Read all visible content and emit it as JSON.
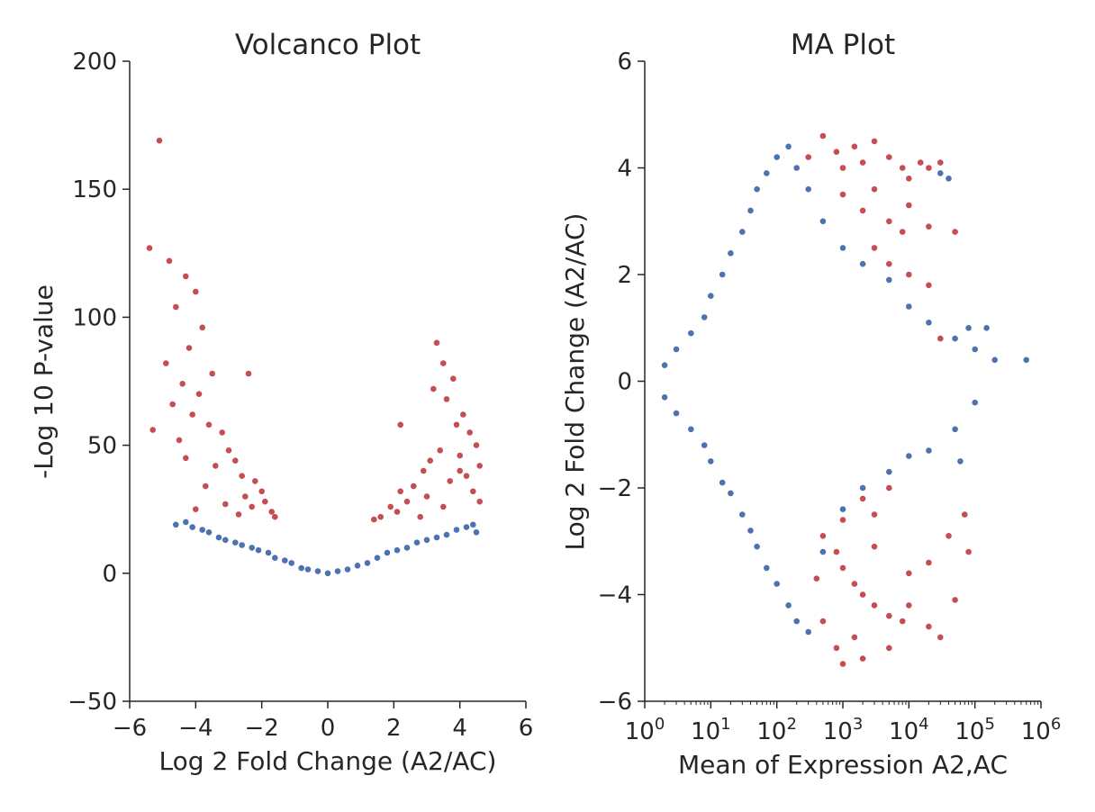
{
  "chart_data": [
    {
      "type": "scatter",
      "title": "Volcanco Plot",
      "xlabel": "Log 2 Fold Change (A2/AC)",
      "ylabel": "-Log 10 P-value",
      "xlim": [
        -6,
        6
      ],
      "ylim": [
        -50,
        200
      ],
      "xticks": [
        -6,
        -4,
        -2,
        0,
        2,
        4,
        6
      ],
      "xtick_labels": [
        "−6",
        "−4",
        "−2",
        "0",
        "2",
        "4",
        "6"
      ],
      "yticks": [
        -50,
        0,
        50,
        100,
        150,
        200
      ],
      "ytick_labels": [
        "−50",
        "0",
        "50",
        "100",
        "150",
        "200"
      ],
      "grid": false,
      "legend": "none",
      "series": [
        {
          "color": "#4c72b0",
          "points": [
            [
              -4.6,
              19
            ],
            [
              -4.3,
              20
            ],
            [
              -4.1,
              18
            ],
            [
              -3.8,
              17
            ],
            [
              -3.6,
              16
            ],
            [
              -3.3,
              14
            ],
            [
              -3.1,
              13
            ],
            [
              -2.8,
              12
            ],
            [
              -2.6,
              11
            ],
            [
              -2.3,
              10
            ],
            [
              -2.1,
              9
            ],
            [
              -1.8,
              8
            ],
            [
              -1.6,
              6
            ],
            [
              -1.3,
              5
            ],
            [
              -1.1,
              4
            ],
            [
              -0.8,
              2
            ],
            [
              -0.6,
              1.5
            ],
            [
              -0.3,
              0.8
            ],
            [
              0,
              0
            ],
            [
              0.3,
              0.8
            ],
            [
              0.6,
              1.5
            ],
            [
              0.9,
              3
            ],
            [
              1.2,
              4
            ],
            [
              1.5,
              6
            ],
            [
              1.8,
              8
            ],
            [
              2.1,
              9
            ],
            [
              2.4,
              10
            ],
            [
              2.7,
              12
            ],
            [
              3.0,
              13
            ],
            [
              3.3,
              14
            ],
            [
              3.6,
              15
            ],
            [
              3.9,
              17
            ],
            [
              4.2,
              18
            ],
            [
              4.4,
              19
            ],
            [
              4.5,
              16
            ]
          ]
        },
        {
          "color": "#c44e52",
          "points": [
            [
              -5.1,
              169
            ],
            [
              -5.4,
              127
            ],
            [
              -4.8,
              122
            ],
            [
              -4.3,
              116
            ],
            [
              -4.0,
              110
            ],
            [
              -4.6,
              104
            ],
            [
              -3.8,
              96
            ],
            [
              -4.2,
              88
            ],
            [
              -4.9,
              82
            ],
            [
              -3.5,
              78
            ],
            [
              -4.4,
              74
            ],
            [
              -3.9,
              70
            ],
            [
              -2.4,
              78
            ],
            [
              -4.7,
              66
            ],
            [
              -4.1,
              62
            ],
            [
              -3.6,
              58
            ],
            [
              -3.2,
              55
            ],
            [
              -4.5,
              52
            ],
            [
              -5.3,
              56
            ],
            [
              -3.0,
              48
            ],
            [
              -2.8,
              44
            ],
            [
              -4.3,
              45
            ],
            [
              -3.4,
              42
            ],
            [
              -2.6,
              38
            ],
            [
              -2.2,
              36
            ],
            [
              -3.7,
              34
            ],
            [
              -2.0,
              32
            ],
            [
              -2.5,
              30
            ],
            [
              -1.9,
              28
            ],
            [
              -3.1,
              27
            ],
            [
              -2.3,
              26
            ],
            [
              -1.7,
              24
            ],
            [
              -4.0,
              25
            ],
            [
              -2.7,
              23
            ],
            [
              -1.6,
              22
            ],
            [
              3.3,
              90
            ],
            [
              3.5,
              82
            ],
            [
              3.2,
              72
            ],
            [
              3.8,
              76
            ],
            [
              3.6,
              68
            ],
            [
              4.1,
              62
            ],
            [
              3.9,
              58
            ],
            [
              4.3,
              55
            ],
            [
              4.5,
              50
            ],
            [
              3.4,
              48
            ],
            [
              4.0,
              46
            ],
            [
              4.6,
              42
            ],
            [
              3.1,
              44
            ],
            [
              2.9,
              40
            ],
            [
              4.2,
              38
            ],
            [
              3.7,
              36
            ],
            [
              2.6,
              34
            ],
            [
              4.4,
              32
            ],
            [
              2.2,
              32
            ],
            [
              3.0,
              30
            ],
            [
              2.4,
              28
            ],
            [
              1.9,
              26
            ],
            [
              3.5,
              26
            ],
            [
              2.1,
              24
            ],
            [
              4.6,
              28
            ],
            [
              1.6,
              22
            ],
            [
              2.8,
              22
            ],
            [
              1.4,
              21
            ],
            [
              2.2,
              58
            ],
            [
              4.0,
              40
            ]
          ]
        }
      ]
    },
    {
      "type": "scatter",
      "title": "MA Plot",
      "xlabel": "Mean of Expression A2,AC",
      "ylabel": "Log 2 Fold Change (A2/AC)",
      "xscale": "log",
      "xlim": [
        1,
        1000000
      ],
      "ylim": [
        -6,
        6
      ],
      "xtick_labels": [
        {
          "base": "10",
          "exp": "0"
        },
        {
          "base": "10",
          "exp": "1"
        },
        {
          "base": "10",
          "exp": "2"
        },
        {
          "base": "10",
          "exp": "3"
        },
        {
          "base": "10",
          "exp": "4"
        },
        {
          "base": "10",
          "exp": "5"
        },
        {
          "base": "10",
          "exp": "6"
        }
      ],
      "yticks": [
        -6,
        -4,
        -2,
        0,
        2,
        4,
        6
      ],
      "ytick_labels": [
        "−6",
        "−4",
        "−2",
        "0",
        "2",
        "4",
        "6"
      ],
      "grid": false,
      "legend": "none",
      "series": [
        {
          "color": "#4c72b0",
          "points": [
            [
              2,
              0.3
            ],
            [
              2,
              -0.3
            ],
            [
              3,
              0.6
            ],
            [
              3,
              -0.6
            ],
            [
              5,
              0.9
            ],
            [
              5,
              -0.9
            ],
            [
              8,
              1.2
            ],
            [
              8,
              -1.2
            ],
            [
              10,
              1.6
            ],
            [
              10,
              -1.5
            ],
            [
              15,
              2.0
            ],
            [
              15,
              -1.9
            ],
            [
              20,
              2.4
            ],
            [
              20,
              -2.1
            ],
            [
              30,
              2.8
            ],
            [
              30,
              -2.5
            ],
            [
              40,
              3.2
            ],
            [
              40,
              -2.8
            ],
            [
              50,
              3.6
            ],
            [
              50,
              -3.1
            ],
            [
              70,
              3.9
            ],
            [
              70,
              -3.5
            ],
            [
              100,
              4.2
            ],
            [
              100,
              -3.8
            ],
            [
              150,
              4.4
            ],
            [
              150,
              -4.2
            ],
            [
              200,
              4.0
            ],
            [
              200,
              -4.5
            ],
            [
              300,
              3.6
            ],
            [
              300,
              -4.7
            ],
            [
              500,
              3.0
            ],
            [
              500,
              -3.2
            ],
            [
              1000,
              2.5
            ],
            [
              1000,
              -2.4
            ],
            [
              2000,
              2.2
            ],
            [
              2000,
              -2.0
            ],
            [
              5000,
              1.9
            ],
            [
              5000,
              -1.7
            ],
            [
              10000,
              1.4
            ],
            [
              10000,
              -1.4
            ],
            [
              20000,
              1.1
            ],
            [
              20000,
              -1.3
            ],
            [
              50000,
              0.8
            ],
            [
              50000,
              -0.9
            ],
            [
              80000,
              1.0
            ],
            [
              100000,
              0.6
            ],
            [
              100000,
              -0.4
            ],
            [
              150000,
              1.0
            ],
            [
              200000,
              0.4
            ],
            [
              600000,
              0.4
            ],
            [
              30000,
              3.9
            ],
            [
              40000,
              3.8
            ],
            [
              60000,
              -1.5
            ]
          ]
        },
        {
          "color": "#c44e52",
          "points": [
            [
              300,
              4.2
            ],
            [
              500,
              4.6
            ],
            [
              800,
              4.3
            ],
            [
              1000,
              4.0
            ],
            [
              1500,
              4.4
            ],
            [
              2000,
              4.1
            ],
            [
              3000,
              4.5
            ],
            [
              5000,
              4.2
            ],
            [
              8000,
              4.0
            ],
            [
              10000,
              3.8
            ],
            [
              15000,
              4.1
            ],
            [
              20000,
              4.0
            ],
            [
              30000,
              4.1
            ],
            [
              1000,
              3.5
            ],
            [
              2000,
              3.2
            ],
            [
              3000,
              3.6
            ],
            [
              5000,
              3.0
            ],
            [
              8000,
              2.8
            ],
            [
              10000,
              3.3
            ],
            [
              20000,
              2.9
            ],
            [
              50000,
              2.8
            ],
            [
              3000,
              2.5
            ],
            [
              5000,
              2.2
            ],
            [
              10000,
              2.0
            ],
            [
              20000,
              1.8
            ],
            [
              30000,
              0.8
            ],
            [
              2000,
              -2.2
            ],
            [
              3000,
              -2.5
            ],
            [
              5000,
              -2.0
            ],
            [
              1000,
              -2.6
            ],
            [
              500,
              -2.9
            ],
            [
              800,
              -3.2
            ],
            [
              1000,
              -3.5
            ],
            [
              1500,
              -3.8
            ],
            [
              2000,
              -4.0
            ],
            [
              3000,
              -4.2
            ],
            [
              5000,
              -4.4
            ],
            [
              8000,
              -4.5
            ],
            [
              10000,
              -4.2
            ],
            [
              20000,
              -4.6
            ],
            [
              30000,
              -4.8
            ],
            [
              50000,
              -4.1
            ],
            [
              500,
              -4.5
            ],
            [
              800,
              -5.0
            ],
            [
              1000,
              -5.3
            ],
            [
              2000,
              -5.2
            ],
            [
              5000,
              -5.0
            ],
            [
              3000,
              -3.1
            ],
            [
              10000,
              -3.6
            ],
            [
              20000,
              -3.4
            ],
            [
              70000,
              -2.5
            ],
            [
              80000,
              -3.2
            ],
            [
              1500,
              -4.8
            ],
            [
              40000,
              -2.9
            ],
            [
              400,
              -3.7
            ]
          ]
        }
      ]
    }
  ]
}
